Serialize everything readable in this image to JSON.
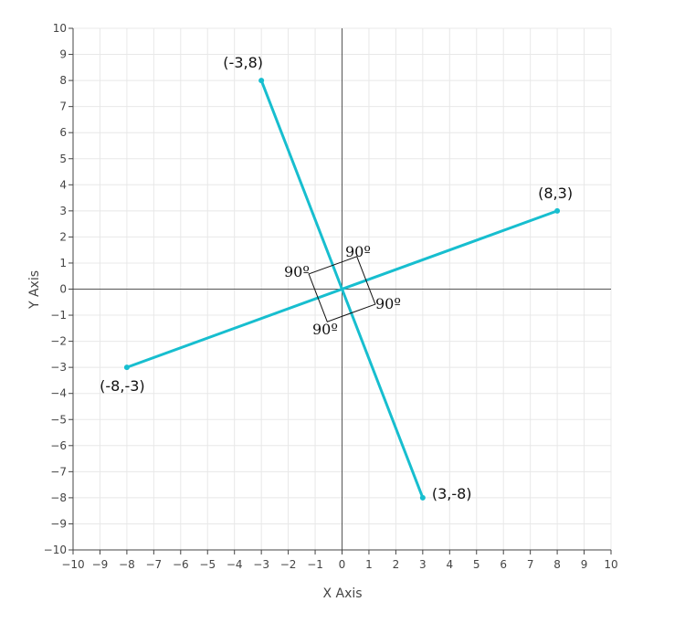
{
  "chart_data": {
    "type": "line",
    "xlabel": "X Axis",
    "ylabel": "Y Axis",
    "xlim": [
      -10,
      10
    ],
    "ylim": [
      -10,
      10
    ],
    "grid": true,
    "line_color": "#17becf",
    "ticks": [
      "−10",
      "−9",
      "−8",
      "−7",
      "−6",
      "−5",
      "−4",
      "−3",
      "−2",
      "−1",
      "0",
      "1",
      "2",
      "3",
      "4",
      "5",
      "6",
      "7",
      "8",
      "9",
      "10"
    ],
    "series": [
      {
        "x": [
          -8,
          8
        ],
        "y": [
          -3,
          3
        ],
        "point_labels": [
          "(-8,-3)",
          "(8,3)"
        ]
      },
      {
        "x": [
          -3,
          3
        ],
        "y": [
          8,
          -8
        ],
        "point_labels": [
          "(-3,8)",
          "(3,-8)"
        ]
      }
    ],
    "angle_labels": [
      "90º",
      "90º",
      "90º",
      "90º"
    ]
  }
}
